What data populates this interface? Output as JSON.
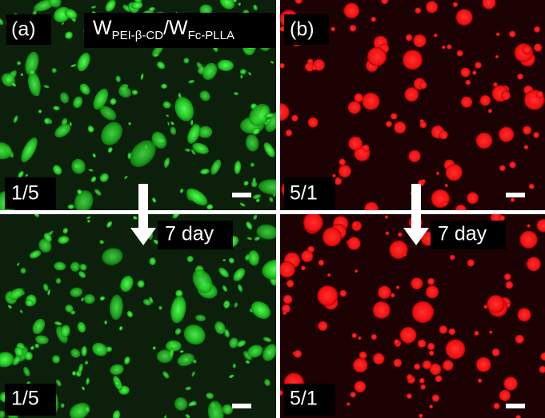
{
  "title": {
    "w1": "W",
    "sub1": "PEI-β-CD",
    "w2": "/W",
    "sub2": "Fc-PLLA"
  },
  "top_left": {
    "label": "(a)",
    "ratio": "1/5"
  },
  "top_right": {
    "label": "(b)",
    "ratio": "5/1"
  },
  "bottom_left": {
    "ratio": "1/5",
    "time": "7 day"
  },
  "bottom_right": {
    "ratio": "5/1",
    "time": "7 day"
  }
}
